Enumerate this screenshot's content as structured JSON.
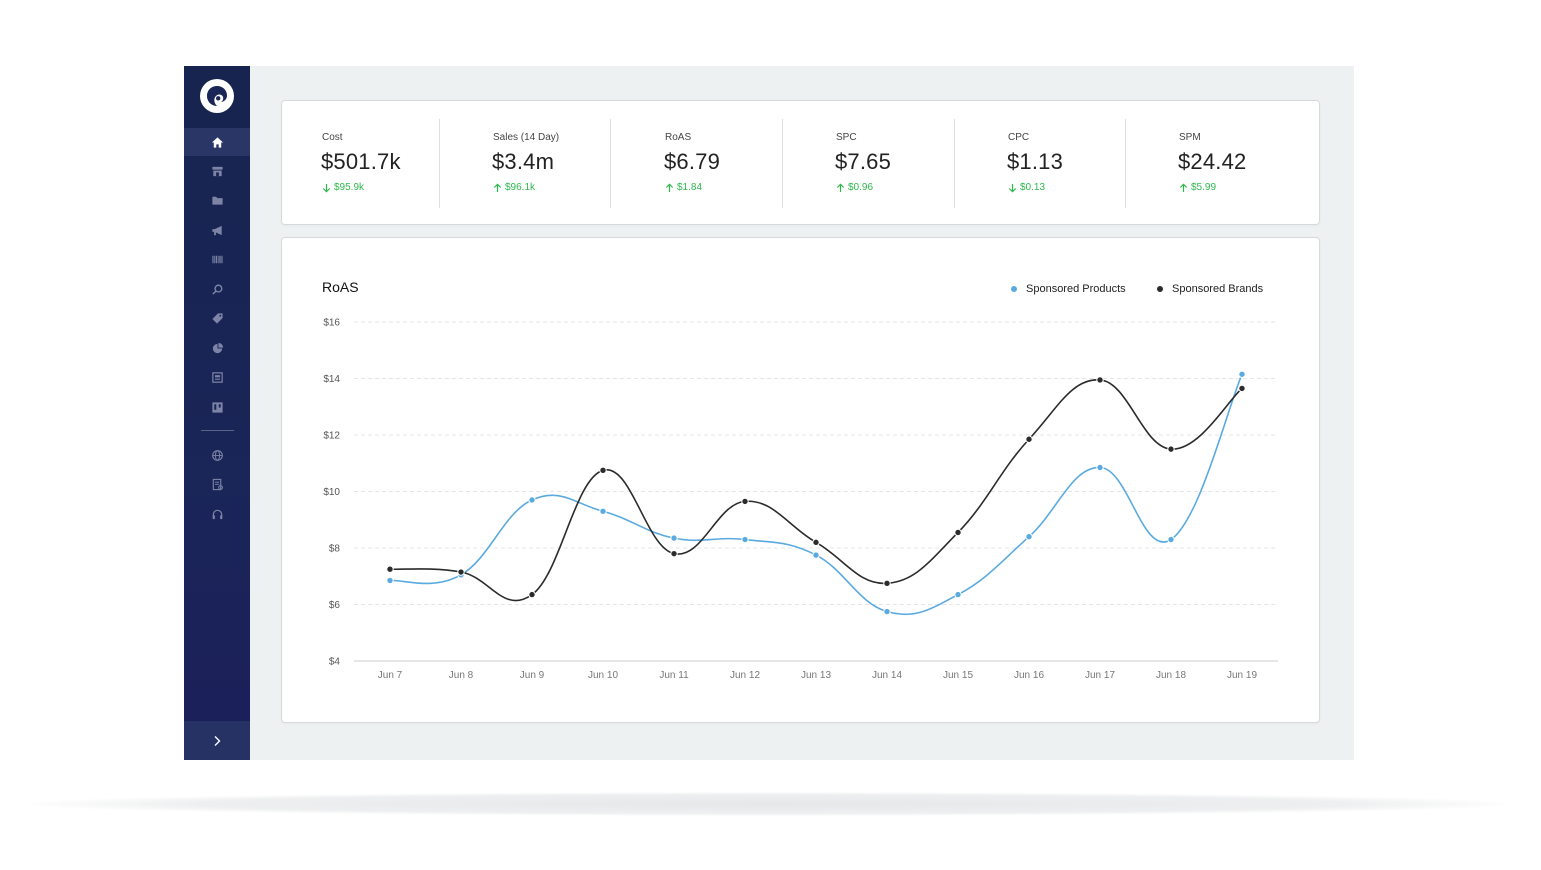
{
  "sidebar": {
    "logo_icon": "logo-swirl-icon",
    "items": [
      {
        "icon": "home-icon",
        "active": true
      },
      {
        "icon": "store-icon",
        "active": false
      },
      {
        "icon": "folder-icon",
        "active": false
      },
      {
        "icon": "megaphone-icon",
        "active": false
      },
      {
        "icon": "barcode-icon",
        "active": false
      },
      {
        "icon": "search-icon",
        "active": false
      },
      {
        "icon": "tag-icon",
        "active": false
      },
      {
        "icon": "pie-chart-icon",
        "active": false
      },
      {
        "icon": "image-icon",
        "active": false
      },
      {
        "icon": "board-icon",
        "active": false
      }
    ],
    "secondary_items": [
      {
        "icon": "globe-icon"
      },
      {
        "icon": "report-icon"
      },
      {
        "icon": "headphones-icon"
      }
    ],
    "toggle_icon": "chevron-right-icon"
  },
  "kpis": [
    {
      "label": "Cost",
      "value": "$501.7k",
      "change": "$95.9k",
      "direction": "down"
    },
    {
      "label": "Sales (14 Day)",
      "value": "$3.4m",
      "change": "$96.1k",
      "direction": "up"
    },
    {
      "label": "RoAS",
      "value": "$6.79",
      "change": "$1.84",
      "direction": "up"
    },
    {
      "label": "SPC",
      "value": "$7.65",
      "change": "$0.96",
      "direction": "up"
    },
    {
      "label": "CPC",
      "value": "$1.13",
      "change": "$0.13",
      "direction": "down"
    },
    {
      "label": "SPM",
      "value": "$24.42",
      "change": "$5.99",
      "direction": "up"
    }
  ],
  "colors": {
    "positive_change": "#2db84d",
    "series_sponsored_products": "#5aaae0",
    "series_sponsored_brands": "#2b2b2b"
  },
  "chart_data": {
    "type": "line",
    "title": "RoAS",
    "xlabel": "",
    "ylabel": "",
    "categories": [
      "Jun 7",
      "Jun 8",
      "Jun 9",
      "Jun 10",
      "Jun 11",
      "Jun 12",
      "Jun 13",
      "Jun 14",
      "Jun 15",
      "Jun 16",
      "Jun 17",
      "Jun 18",
      "Jun 19"
    ],
    "ylim": [
      4,
      16
    ],
    "yticks": [
      4,
      6,
      8,
      10,
      12,
      14,
      16
    ],
    "ytick_labels": [
      "$4",
      "$6",
      "$8",
      "$10",
      "$12",
      "$14",
      "$16"
    ],
    "grid": true,
    "legend_position": "top-right",
    "series": [
      {
        "name": "Sponsored Products",
        "color": "#5aaae0",
        "values": [
          6.85,
          7.05,
          9.7,
          9.3,
          8.35,
          8.3,
          7.75,
          5.75,
          6.35,
          8.4,
          10.85,
          8.3,
          14.15
        ]
      },
      {
        "name": "Sponsored Brands",
        "color": "#2b2b2b",
        "values": [
          7.25,
          7.15,
          6.35,
          10.75,
          7.8,
          9.65,
          8.2,
          6.75,
          8.55,
          11.85,
          13.95,
          11.5,
          13.65
        ]
      }
    ]
  }
}
